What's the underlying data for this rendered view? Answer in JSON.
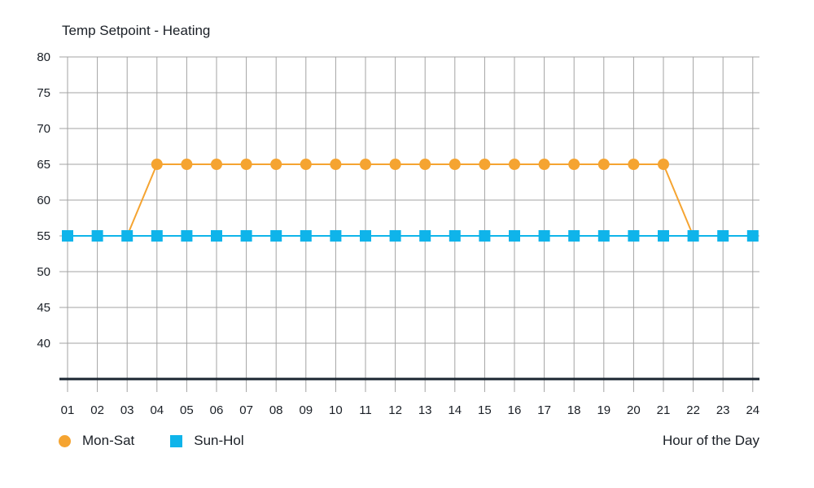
{
  "chart_data": {
    "type": "line",
    "title": "Temp Setpoint - Heating",
    "xlabel": "Hour of the Day",
    "ylabel": "",
    "categories": [
      "01",
      "02",
      "03",
      "04",
      "05",
      "06",
      "07",
      "08",
      "09",
      "10",
      "11",
      "12",
      "13",
      "14",
      "15",
      "16",
      "17",
      "18",
      "19",
      "20",
      "21",
      "22",
      "23",
      "24"
    ],
    "ylim": [
      35,
      80
    ],
    "yticks": [
      40,
      45,
      50,
      55,
      60,
      65,
      70,
      75,
      80
    ],
    "grid": true,
    "legend_position": "bottom-left",
    "series": [
      {
        "name": "Mon-Sat",
        "marker": "circle",
        "color": "#f5a431",
        "values": [
          null,
          null,
          55,
          65,
          65,
          65,
          65,
          65,
          65,
          65,
          65,
          65,
          65,
          65,
          65,
          65,
          65,
          65,
          65,
          65,
          65,
          55,
          null,
          null
        ]
      },
      {
        "name": "Sun-Hol",
        "marker": "square",
        "color": "#0fb4ea",
        "values": [
          55,
          55,
          55,
          55,
          55,
          55,
          55,
          55,
          55,
          55,
          55,
          55,
          55,
          55,
          55,
          55,
          55,
          55,
          55,
          55,
          55,
          55,
          55,
          55
        ]
      }
    ]
  }
}
